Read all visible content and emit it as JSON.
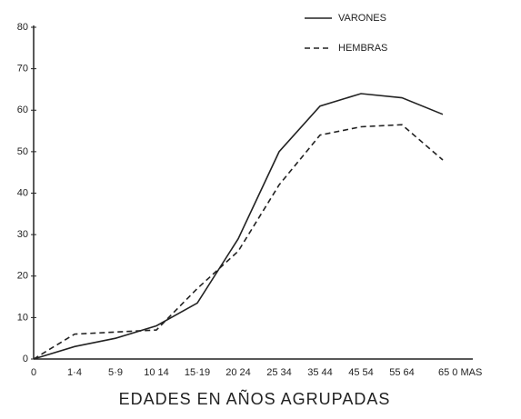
{
  "chart_data": {
    "type": "line",
    "xlabel": "EDADES EN AÑOS AGRUPADAS",
    "categories": [
      "0",
      "1·4",
      "5·9",
      "10 14",
      "15·19",
      "20 24",
      "25 34",
      "35 44",
      "45 54",
      "55 64",
      "65 0 MAS"
    ],
    "series": [
      {
        "name": "VARONES",
        "color": "#222222",
        "dash": false,
        "values": [
          0,
          3,
          5,
          8,
          13.5,
          29,
          50,
          61,
          64,
          63,
          59
        ]
      },
      {
        "name": "HEMBRAS",
        "color": "#222222",
        "dash": true,
        "values": [
          0,
          6,
          6.5,
          7,
          17,
          26,
          42,
          54,
          56,
          56.5,
          48
        ]
      }
    ],
    "ylim": [
      0,
      80
    ],
    "yticks": [
      0,
      10,
      20,
      30,
      40,
      50,
      60,
      70,
      80
    ],
    "grid": false,
    "legend": "upper right"
  }
}
